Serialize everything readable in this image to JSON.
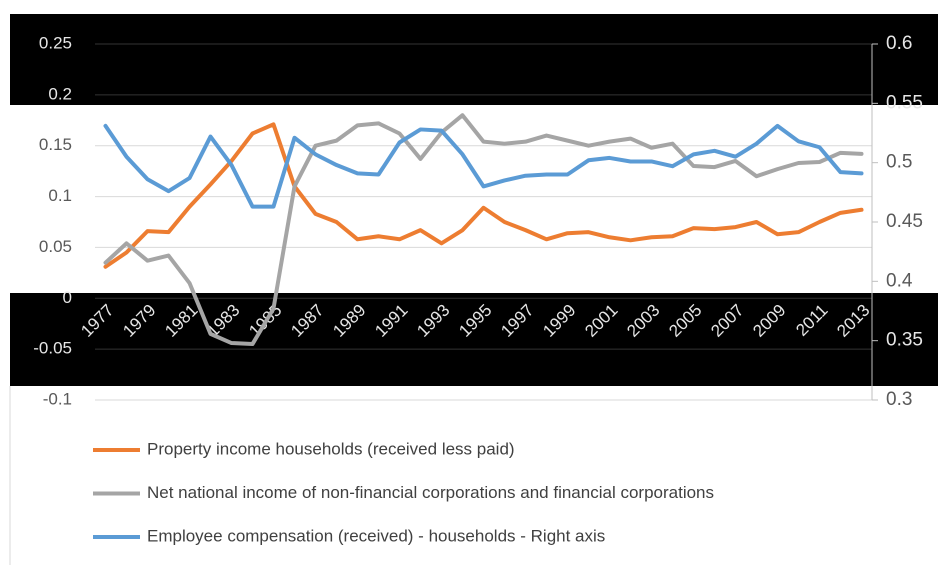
{
  "chart_data": {
    "type": "line",
    "categories": [
      "1977",
      null,
      "1979",
      null,
      "1981",
      null,
      "1983",
      null,
      "1985",
      null,
      "1987",
      null,
      "1989",
      null,
      "1991",
      null,
      "1993",
      null,
      "1995",
      null,
      "1997",
      null,
      "1999",
      null,
      "2001",
      null,
      "2003",
      null,
      "2005",
      null,
      "2007",
      null,
      "2009",
      null,
      "2011",
      null,
      "2013"
    ],
    "series": [
      {
        "name": "Property income households (received less paid)",
        "color": "#ed7d31",
        "values": [
          0.031,
          0.045,
          0.066,
          0.065,
          0.09,
          0.112,
          0.135,
          0.162,
          0.171,
          0.11,
          0.083,
          0.075,
          0.058,
          0.061,
          0.058,
          0.067,
          0.054,
          0.067,
          0.089,
          0.075,
          0.067,
          0.058,
          0.064,
          0.065,
          0.06,
          0.057,
          0.06,
          0.061,
          0.069,
          0.068,
          0.07,
          0.075,
          0.063,
          0.065,
          0.075,
          0.084,
          0.087
        ]
      },
      {
        "name": "Net national income of non-financial corporations and financial corporations",
        "color": "#a5a5a5",
        "values": [
          0.035,
          0.054,
          0.037,
          0.042,
          0.015,
          -0.035,
          -0.044,
          -0.045,
          -0.01,
          0.11,
          0.15,
          0.155,
          0.17,
          0.172,
          0.162,
          0.137,
          0.163,
          0.18,
          0.154,
          0.152,
          0.154,
          0.16,
          0.155,
          0.15,
          0.154,
          0.157,
          0.148,
          0.152,
          0.13,
          0.129,
          0.135,
          0.12,
          0.127,
          0.133,
          0.134,
          0.143,
          0.142
        ]
      },
      {
        "name": "Employee compensation (received) -  households - Right axis",
        "color": "#5b9bd5",
        "axis": "y2",
        "values": [
          0.531,
          0.505,
          0.486,
          0.476,
          0.487,
          0.522,
          0.498,
          0.463,
          0.463,
          0.521,
          0.507,
          0.498,
          0.491,
          0.49,
          0.517,
          0.528,
          0.527,
          0.507,
          0.48,
          0.485,
          0.489,
          0.49,
          0.49,
          0.502,
          0.504,
          0.501,
          0.501,
          0.497,
          0.507,
          0.51,
          0.505,
          0.516,
          0.531,
          0.518,
          0.513,
          0.492,
          0.491
        ]
      }
    ],
    "ylim": [
      -0.1,
      0.25
    ],
    "yticks": [
      -0.1,
      -0.05,
      0,
      0.05,
      0.1,
      0.15,
      0.2,
      0.25
    ],
    "y2lim": [
      0.3,
      0.6
    ],
    "y2ticks": [
      0.3,
      0.35,
      0.4,
      0.45,
      0.5,
      0.55,
      0.6
    ],
    "grid": true,
    "legend": "bottom"
  }
}
